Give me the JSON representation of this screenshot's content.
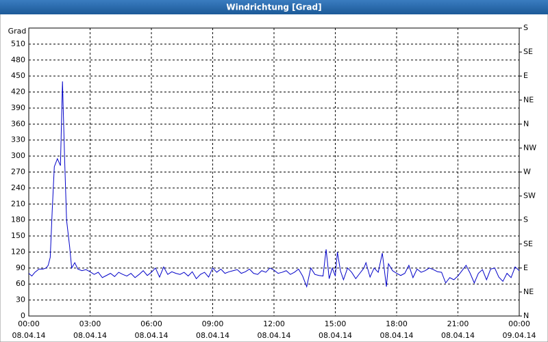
{
  "chart_data": {
    "type": "line",
    "title": "Windrichtung [Grad]",
    "y_label": "Grad",
    "x": [
      0,
      0.15,
      0.3,
      0.5,
      0.7,
      0.85,
      0.95,
      1.05,
      1.15,
      1.25,
      1.4,
      1.55,
      1.65,
      1.75,
      1.85,
      2.0,
      2.1,
      2.25,
      2.4,
      2.6,
      2.8,
      3.0,
      3.2,
      3.4,
      3.6,
      3.8,
      4.0,
      4.2,
      4.4,
      4.6,
      4.8,
      5.0,
      5.2,
      5.4,
      5.6,
      5.8,
      6.0,
      6.2,
      6.4,
      6.6,
      6.8,
      7.0,
      7.2,
      7.4,
      7.6,
      7.8,
      8.0,
      8.2,
      8.4,
      8.6,
      8.8,
      9.0,
      9.2,
      9.4,
      9.6,
      9.8,
      10.0,
      10.2,
      10.4,
      10.6,
      10.8,
      11.0,
      11.2,
      11.4,
      11.6,
      11.8,
      12.0,
      12.2,
      12.4,
      12.6,
      12.8,
      13.0,
      13.2,
      13.4,
      13.6,
      13.8,
      14.0,
      14.2,
      14.4,
      14.55,
      14.7,
      14.85,
      15.0,
      15.1,
      15.25,
      15.4,
      15.6,
      15.8,
      16.0,
      16.2,
      16.4,
      16.5,
      16.7,
      16.9,
      17.1,
      17.3,
      17.5,
      17.6,
      17.8,
      18.0,
      18.2,
      18.4,
      18.6,
      18.8,
      19.0,
      19.2,
      19.4,
      19.6,
      19.8,
      20.0,
      20.2,
      20.4,
      20.6,
      20.8,
      21.0,
      21.2,
      21.4,
      21.6,
      21.8,
      22.0,
      22.2,
      22.4,
      22.6,
      22.8,
      23.0,
      23.2,
      23.4,
      23.6,
      23.8,
      24.0
    ],
    "series": [
      {
        "name": "Windrichtung",
        "color": "#0000c8",
        "values": [
          80,
          75,
          82,
          88,
          88,
          90,
          95,
          110,
          200,
          280,
          295,
          282,
          440,
          300,
          180,
          130,
          90,
          100,
          88,
          85,
          87,
          83,
          78,
          82,
          72,
          76,
          80,
          74,
          82,
          78,
          75,
          80,
          72,
          78,
          85,
          76,
          82,
          90,
          73,
          92,
          78,
          83,
          80,
          78,
          82,
          75,
          83,
          70,
          78,
          82,
          73,
          90,
          82,
          88,
          80,
          83,
          85,
          87,
          80,
          83,
          88,
          80,
          78,
          85,
          82,
          90,
          86,
          80,
          82,
          85,
          78,
          82,
          88,
          75,
          55,
          90,
          78,
          76,
          75,
          125,
          70,
          90,
          75,
          120,
          85,
          68,
          90,
          82,
          70,
          80,
          90,
          100,
          73,
          90,
          82,
          118,
          55,
          98,
          85,
          80,
          76,
          80,
          95,
          72,
          88,
          82,
          85,
          90,
          87,
          83,
          82,
          62,
          72,
          68,
          75,
          85,
          95,
          80,
          62,
          80,
          87,
          68,
          88,
          90,
          73,
          65,
          80,
          72,
          92,
          85
        ]
      }
    ],
    "xlim": [
      0,
      24
    ],
    "xticks": [
      {
        "value": 0,
        "label": "00:00"
      },
      {
        "value": 3,
        "label": "03:00"
      },
      {
        "value": 6,
        "label": "06:00"
      },
      {
        "value": 9,
        "label": "09:00"
      },
      {
        "value": 12,
        "label": "12:00"
      },
      {
        "value": 15,
        "label": "15:00"
      },
      {
        "value": 18,
        "label": "18:00"
      },
      {
        "value": 21,
        "label": "21:00"
      },
      {
        "value": 24,
        "label": "00:00"
      }
    ],
    "xtick_dates": [
      "08.04.14",
      "08.04.14",
      "08.04.14",
      "08.04.14",
      "08.04.14",
      "08.04.14",
      "08.04.14",
      "08.04.14",
      "09.04.14"
    ],
    "ylim": [
      0,
      540
    ],
    "yticks": [
      0,
      30,
      60,
      90,
      120,
      150,
      180,
      210,
      240,
      270,
      300,
      330,
      360,
      390,
      420,
      450,
      480,
      510
    ],
    "y2lim": [
      0,
      540
    ],
    "y2ticks": [
      {
        "value": 0,
        "label": "N"
      },
      {
        "value": 45,
        "label": "NE"
      },
      {
        "value": 90,
        "label": "E"
      },
      {
        "value": 135,
        "label": "SE"
      },
      {
        "value": 180,
        "label": "S"
      },
      {
        "value": 225,
        "label": "SW"
      },
      {
        "value": 270,
        "label": "W"
      },
      {
        "value": 315,
        "label": "NW"
      },
      {
        "value": 360,
        "label": "N"
      },
      {
        "value": 405,
        "label": "NE"
      },
      {
        "value": 450,
        "label": "E"
      },
      {
        "value": 495,
        "label": "SE"
      },
      {
        "value": 540,
        "label": "S"
      }
    ],
    "grid": true
  }
}
